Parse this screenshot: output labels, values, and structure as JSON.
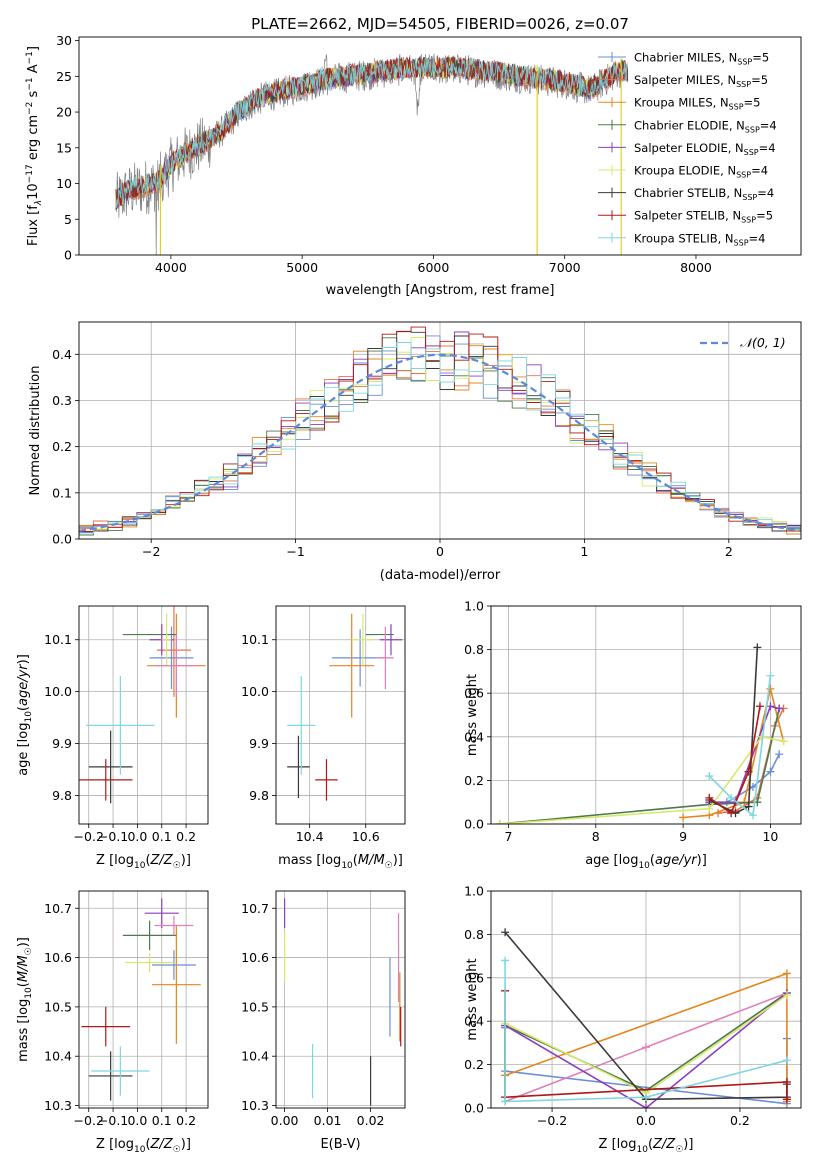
{
  "title": "PLATE=2662, MJD=54505, FIBERID=0026, z=0.07",
  "colors": {
    "chabrier_miles": "#6b8ed6",
    "salpeter_miles": "#e8734a",
    "kroupa_miles": "#e5851f",
    "chabrier_elodie": "#4c7a4c",
    "salpeter_elodie": "#8c3fc0",
    "kroupa_elodie": "#d8e86a",
    "chabrier_stelib": "#3a3a3a",
    "salpeter_stelib": "#b01818",
    "kroupa_stelib": "#7fd6e0",
    "pink": "#e07fb8",
    "data_gray": "#808080",
    "normal": "#5b8bd8"
  },
  "chart_data": [
    {
      "id": "spectrum",
      "type": "line",
      "title": "PLATE=2662, MJD=54505, FIBERID=0026, z=0.07",
      "xlabel": "wavelength [Angstrom, rest frame]",
      "ylabel": "Flux [f_λ10^-17 erg cm^-2 s^-1 A^-1]",
      "xlim": [
        3300,
        8800
      ],
      "ylim": [
        0,
        30.5
      ],
      "xticks": [
        4000,
        5000,
        6000,
        7000,
        8000
      ],
      "yticks": [
        0,
        5,
        10,
        15,
        20,
        25,
        30
      ],
      "legend_position": "top-right",
      "legend": [
        {
          "text": "Chabrier MILES, N",
          "sub": "SSP",
          "val": "=5"
        },
        {
          "text": "Salpeter MILES, N",
          "sub": "SSP",
          "val": "=5"
        },
        {
          "text": "Kroupa MILES, N",
          "sub": "SSP",
          "val": "=5"
        },
        {
          "text": "Chabrier ELODIE, N",
          "sub": "SSP",
          "val": "=4"
        },
        {
          "text": "Salpeter ELODIE, N",
          "sub": "SSP",
          "val": "=4"
        },
        {
          "text": "Kroupa ELODIE, N",
          "sub": "SSP",
          "val": "=4"
        },
        {
          "text": "Chabrier STELIB, N",
          "sub": "SSP",
          "val": "=4"
        },
        {
          "text": "Salpeter STELIB, N",
          "sub": "SSP",
          "val": "=5"
        },
        {
          "text": "Kroupa STELIB, N",
          "sub": "SSP",
          "val": "=4"
        }
      ],
      "continuum": {
        "x": [
          3580,
          3650,
          3700,
          3800,
          3900,
          4000,
          4100,
          4200,
          4300,
          4400,
          4500,
          4600,
          4700,
          4800,
          4900,
          5000,
          5200,
          5400,
          5600,
          5800,
          6000,
          6200,
          6400,
          6600,
          6800,
          7000,
          7200,
          7400,
          7500
        ],
        "y": [
          7.5,
          8.5,
          9,
          9.5,
          10,
          12.5,
          14,
          15,
          16,
          17.5,
          19.5,
          21,
          22,
          22.5,
          23,
          23.5,
          24.5,
          25,
          25.5,
          26,
          26,
          26,
          25.5,
          25,
          24.5,
          24,
          23,
          25.5,
          25.5
        ]
      },
      "models_end": 7480,
      "data_end": 7450,
      "x_extra": [
        7400,
        7420,
        7450,
        7480,
        7500,
        7520,
        7550
      ],
      "y_extra": [
        25,
        26,
        25.5,
        25,
        26,
        25.5,
        25
      ]
    },
    {
      "id": "residuals",
      "type": "bar",
      "xlabel": "(data-model)/error",
      "ylabel": "Normed distribution",
      "xlim": [
        -2.5,
        2.5
      ],
      "ylim": [
        0,
        0.47
      ],
      "xticks": [
        -2,
        -1,
        0,
        1,
        2
      ],
      "xtick_labels": [
        "−2",
        "−1",
        "0",
        "1",
        "2"
      ],
      "yticks": [
        0.0,
        0.1,
        0.2,
        0.3,
        0.4
      ],
      "ytick_labels": [
        "0.0",
        "0.1",
        "0.2",
        "0.3",
        "0.4"
      ],
      "legend_position": "top-right",
      "legend_label": "𝒩(0, 1)",
      "bin_width": 0.1
    },
    {
      "id": "age_vs_z",
      "type": "scatter",
      "xlabel": "Z [log10(Z/Z☉)]",
      "ylabel": "age  [log10(age/yr)]",
      "xlim": [
        -0.24,
        0.29
      ],
      "ylim": [
        9.745,
        10.165
      ],
      "xticks": [
        -0.2,
        -0.1,
        0.0,
        0.1,
        0.2
      ],
      "xtick_labels": [
        "−0.2",
        "−0.1",
        "0.0",
        "0.1",
        "0.2"
      ],
      "yticks": [
        9.8,
        9.9,
        10.0,
        10.1
      ],
      "ytick_labels": [
        "9.8",
        "9.9",
        "10.0",
        "10.1"
      ],
      "points": [
        {
          "series": "chabrier_miles",
          "x": 0.14,
          "y": 10.065,
          "xe": 0.09,
          "ye": 0.06
        },
        {
          "series": "salpeter_miles",
          "x": 0.15,
          "y": 10.08,
          "xe": 0.07,
          "ye": 0.09
        },
        {
          "series": "kroupa_miles",
          "x": 0.16,
          "y": 10.05,
          "xe": 0.12,
          "ye": 0.1
        },
        {
          "series": "chabrier_elodie",
          "x": 0.05,
          "y": 10.11,
          "xe": 0.11,
          "ye": 0.0
        },
        {
          "series": "salpeter_elodie",
          "x": 0.1,
          "y": 10.1,
          "xe": 0.05,
          "ye": 0.03
        },
        {
          "series": "kroupa_elodie",
          "x": 0.12,
          "y": 10.1,
          "xe": 0.02,
          "ye": 0.05
        },
        {
          "series": "chabrier_stelib",
          "x": -0.11,
          "y": 9.855,
          "xe": 0.09,
          "ye": 0.07
        },
        {
          "series": "salpeter_stelib",
          "x": -0.13,
          "y": 9.83,
          "xe": 0.11,
          "ye": 0.04
        },
        {
          "series": "kroupa_stelib",
          "x": -0.07,
          "y": 9.935,
          "xe": 0.14,
          "ye": 0.095
        },
        {
          "series": "pink",
          "x": 0.16,
          "y": 10.05,
          "xe": 0.09,
          "ye": 0.06
        }
      ]
    },
    {
      "id": "age_vs_mass",
      "type": "scatter",
      "xlabel": "mass [log10(M/M☉)]",
      "ylabel": "",
      "xlim": [
        10.28,
        10.74
      ],
      "ylim": [
        9.745,
        10.165
      ],
      "xticks": [
        10.4,
        10.6
      ],
      "xtick_labels": [
        "10.4",
        "10.6"
      ],
      "yticks": [
        9.8,
        9.9,
        10.0,
        10.1
      ],
      "ytick_labels": [
        "9.8",
        "9.9",
        "10.0",
        "10.1"
      ],
      "points": [
        {
          "series": "chabrier_miles",
          "x": 10.58,
          "y": 10.065,
          "xe": 0.1,
          "ye": 0.055
        },
        {
          "series": "kroupa_miles",
          "x": 10.55,
          "y": 10.05,
          "xe": 0.08,
          "ye": 0.1
        },
        {
          "series": "chabrier_elodie",
          "x": 10.65,
          "y": 10.11,
          "xe": 0.05,
          "ye": 0.0
        },
        {
          "series": "salpeter_elodie",
          "x": 10.69,
          "y": 10.1,
          "xe": 0.04,
          "ye": 0.03
        },
        {
          "series": "kroupa_elodie",
          "x": 10.59,
          "y": 10.1,
          "xe": 0.04,
          "ye": 0.05
        },
        {
          "series": "chabrier_stelib",
          "x": 10.36,
          "y": 10.07,
          "xe": 0.0,
          "ye": 0.0
        },
        {
          "series": "chabrier_stelib",
          "x": 10.36,
          "y": 9.855,
          "xe": 0.04,
          "ye": 0.06
        },
        {
          "series": "salpeter_stelib",
          "x": 10.46,
          "y": 9.83,
          "xe": 0.04,
          "ye": 0.04
        },
        {
          "series": "kroupa_stelib",
          "x": 10.37,
          "y": 9.935,
          "xe": 0.05,
          "ye": 0.095
        },
        {
          "series": "pink",
          "x": 10.67,
          "y": 10.065,
          "xe": 0.03,
          "ye": 0.06
        }
      ]
    },
    {
      "id": "massweight_vs_age",
      "type": "line",
      "xlabel": "age  [log10(age/yr)]",
      "ylabel": "mass weight",
      "xlim": [
        6.8,
        10.35
      ],
      "ylim": [
        0,
        1.0
      ],
      "xticks": [
        7,
        8,
        9,
        10
      ],
      "yticks": [
        0.0,
        0.2,
        0.4,
        0.6,
        0.8,
        1.0
      ],
      "ytick_labels": [
        "0.0",
        "0.2",
        "0.4",
        "0.6",
        "0.8",
        "1.0"
      ],
      "series": [
        {
          "key": "chabrier_miles",
          "x": [
            9.3,
            9.5,
            9.8,
            10.0,
            10.1
          ],
          "y": [
            0.09,
            0.1,
            0.17,
            0.24,
            0.32
          ]
        },
        {
          "key": "salpeter_miles",
          "x": [
            9.4,
            9.6,
            9.85,
            10.05,
            10.15
          ],
          "y": [
            0.05,
            0.06,
            0.12,
            0.45,
            0.53
          ]
        },
        {
          "key": "kroupa_miles",
          "x": [
            9.0,
            9.3,
            9.7,
            10.0,
            10.15
          ],
          "y": [
            0.03,
            0.04,
            0.1,
            0.62,
            0.38
          ]
        },
        {
          "key": "chabrier_elodie",
          "x": [
            6.9,
            9.3,
            9.85,
            10.1
          ],
          "y": [
            0.0,
            0.09,
            0.1,
            0.53
          ]
        },
        {
          "key": "salpeter_elodie",
          "x": [
            9.3,
            9.6,
            10.0,
            10.1
          ],
          "y": [
            0.1,
            0.1,
            0.54,
            0.53
          ]
        },
        {
          "key": "kroupa_elodie",
          "x": [
            6.9,
            9.3,
            9.9,
            10.15
          ],
          "y": [
            0.0,
            0.07,
            0.4,
            0.38
          ]
        },
        {
          "key": "chabrier_stelib",
          "x": [
            9.3,
            9.6,
            9.75,
            9.85
          ],
          "y": [
            0.11,
            0.05,
            0.08,
            0.81
          ]
        },
        {
          "key": "salpeter_stelib",
          "x": [
            9.3,
            9.55,
            9.75,
            9.88
          ],
          "y": [
            0.12,
            0.05,
            0.24,
            0.54
          ]
        },
        {
          "key": "kroupa_stelib",
          "x": [
            9.3,
            9.55,
            9.8,
            10.0
          ],
          "y": [
            0.22,
            0.12,
            0.04,
            0.68
          ]
        }
      ]
    },
    {
      "id": "mass_vs_z",
      "type": "scatter",
      "xlabel": "Z [log10(Z/Z☉)]",
      "ylabel": "mass [log10(M/M☉)]",
      "xlim": [
        -0.24,
        0.29
      ],
      "ylim": [
        10.295,
        10.735
      ],
      "xticks": [
        -0.2,
        -0.1,
        0.0,
        0.1,
        0.2
      ],
      "xtick_labels": [
        "−0.2",
        "−0.1",
        "0.0",
        "0.1",
        "0.2"
      ],
      "yticks": [
        10.3,
        10.4,
        10.5,
        10.6,
        10.7
      ],
      "ytick_labels": [
        "10.3",
        "10.4",
        "10.5",
        "10.6",
        "10.7"
      ],
      "points": [
        {
          "series": "chabrier_miles",
          "x": 0.15,
          "y": 10.585,
          "xe": 0.09,
          "ye": 0.03
        },
        {
          "series": "kroupa_miles",
          "x": 0.16,
          "y": 10.545,
          "xe": 0.1,
          "ye": 0.12
        },
        {
          "series": "chabrier_elodie",
          "x": 0.05,
          "y": 10.645,
          "xe": 0.11,
          "ye": 0.03
        },
        {
          "series": "salpeter_elodie",
          "x": 0.1,
          "y": 10.69,
          "xe": 0.07,
          "ye": 0.03
        },
        {
          "series": "kroupa_elodie",
          "x": 0.05,
          "y": 10.59,
          "xe": 0.1,
          "ye": 0.02
        },
        {
          "series": "pink",
          "x": 0.15,
          "y": 10.665,
          "xe": 0.08,
          "ye": 0.02
        },
        {
          "series": "chabrier_stelib",
          "x": -0.11,
          "y": 10.36,
          "xe": 0.09,
          "ye": 0.05
        },
        {
          "series": "salpeter_stelib",
          "x": -0.13,
          "y": 10.46,
          "xe": 0.1,
          "ye": 0.04
        },
        {
          "series": "kroupa_stelib",
          "x": -0.07,
          "y": 10.37,
          "xe": 0.12,
          "ye": 0.05
        }
      ]
    },
    {
      "id": "mass_vs_ebv",
      "type": "scatter",
      "xlabel": "E(B-V)",
      "ylabel": "",
      "xlim": [
        -0.002,
        0.028
      ],
      "ylim": [
        10.295,
        10.735
      ],
      "xticks": [
        0.0,
        0.01,
        0.02
      ],
      "xtick_labels": [
        "0.00",
        "0.01",
        "0.02"
      ],
      "yticks": [
        10.3,
        10.4,
        10.5,
        10.6,
        10.7
      ],
      "ytick_labels": [
        "10.3",
        "10.4",
        "10.5",
        "10.6",
        "10.7"
      ],
      "points": [
        {
          "series": "salpeter_elodie",
          "x": 0.0,
          "y": 10.69,
          "xe": 0.0,
          "ye": 0.03
        },
        {
          "series": "kroupa_elodie",
          "x": 0.0,
          "y": 10.6,
          "xe": 0.0,
          "ye": 0.05
        },
        {
          "series": "kroupa_stelib",
          "x": 0.0065,
          "y": 10.37,
          "xe": 0.0,
          "ye": 0.055
        },
        {
          "series": "chabrier_stelib",
          "x": 0.02,
          "y": 10.35,
          "xe": 0.0,
          "ye": 0.05
        },
        {
          "series": "chabrier_miles",
          "x": 0.0245,
          "y": 10.52,
          "xe": 0.0,
          "ye": 0.08
        },
        {
          "series": "pink",
          "x": 0.0265,
          "y": 10.6,
          "xe": 0.0,
          "ye": 0.09
        },
        {
          "series": "kroupa_miles",
          "x": 0.0268,
          "y": 10.5,
          "xe": 0.0,
          "ye": 0.07
        },
        {
          "series": "salpeter_stelib",
          "x": 0.027,
          "y": 10.46,
          "xe": 0.0,
          "ye": 0.04
        }
      ]
    },
    {
      "id": "massweight_vs_z",
      "type": "line",
      "xlabel": "Z [log10(Z/Z☉)]",
      "ylabel": "mass weight",
      "xlim": [
        -0.33,
        0.33
      ],
      "ylim": [
        0,
        1.0
      ],
      "xticks": [
        -0.2,
        0.0,
        0.2
      ],
      "xtick_labels": [
        "−0.2",
        "0.0",
        "0.2"
      ],
      "yticks": [
        0.0,
        0.2,
        0.4,
        0.6,
        0.8,
        1.0
      ],
      "ytick_labels": [
        "0.0",
        "0.2",
        "0.4",
        "0.6",
        "0.8",
        "1.0"
      ],
      "series": [
        {
          "key": "chabrier_miles",
          "x": [
            -0.3,
            -0.3,
            0.3,
            0.3
          ],
          "y": [
            0.37,
            0.17,
            0.02,
            0.32
          ]
        },
        {
          "key": "pink",
          "x": [
            -0.3,
            0.0,
            0.3
          ],
          "y": [
            0.03,
            0.28,
            0.53
          ]
        },
        {
          "key": "kroupa_miles",
          "x": [
            -0.3,
            0.3,
            0.3
          ],
          "y": [
            0.15,
            0.62,
            0.03
          ]
        },
        {
          "key": "chabrier_elodie",
          "x": [
            -0.3,
            -0.3,
            0.0,
            0.3
          ],
          "y": [
            0.05,
            0.38,
            0.08,
            0.53
          ]
        },
        {
          "key": "salpeter_elodie",
          "x": [
            -0.3,
            0.0,
            0.3
          ],
          "y": [
            0.38,
            0.0,
            0.53
          ]
        },
        {
          "key": "kroupa_elodie",
          "x": [
            -0.3,
            -0.3,
            0.0,
            0.3
          ],
          "y": [
            0.03,
            0.39,
            0.07,
            0.52
          ]
        },
        {
          "key": "chabrier_stelib",
          "x": [
            -0.3,
            0.0,
            0.3,
            0.3
          ],
          "y": [
            0.81,
            0.04,
            0.05,
            0.11
          ]
        },
        {
          "key": "salpeter_stelib",
          "x": [
            -0.3,
            -0.3,
            0.3,
            0.3
          ],
          "y": [
            0.54,
            0.05,
            0.12,
            0.04
          ]
        },
        {
          "key": "kroupa_stelib",
          "x": [
            -0.3,
            -0.3,
            0.0,
            0.3
          ],
          "y": [
            0.68,
            0.03,
            0.05,
            0.22
          ]
        }
      ]
    }
  ]
}
